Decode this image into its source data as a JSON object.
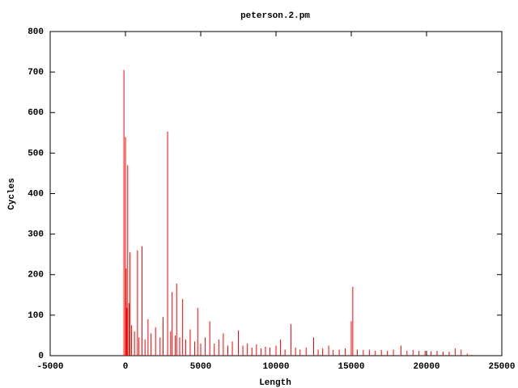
{
  "chart_data": {
    "type": "impulse",
    "title": "peterson.2.pm",
    "x_label": "Length",
    "y_label": "Cycles",
    "color": "#ff0000",
    "x": [
      -100,
      0,
      50,
      100,
      150,
      250,
      300,
      400,
      600,
      800,
      900,
      1100,
      1300,
      1500,
      1700,
      2000,
      2300,
      2500,
      2800,
      3000,
      3100,
      3300,
      3400,
      3600,
      3800,
      4000,
      4300,
      4600,
      4800,
      5000,
      5300,
      5600,
      5900,
      6200,
      6500,
      6800,
      7100,
      7500,
      7800,
      8100,
      8400,
      8700,
      9000,
      9300,
      9600,
      10000,
      10300,
      10600,
      11000,
      11300,
      11600,
      12000,
      12500,
      12800,
      13100,
      13500,
      13800,
      14200,
      14600,
      15000,
      15100,
      15400,
      15800,
      16200,
      16600,
      17000,
      17400,
      17800,
      18300,
      18700,
      19100,
      19500,
      19900,
      20300,
      20700,
      21100,
      21500,
      21900,
      22300,
      22700,
      23000
    ],
    "values": [
      705,
      540,
      215,
      118,
      470,
      130,
      255,
      75,
      60,
      260,
      45,
      270,
      40,
      90,
      55,
      70,
      45,
      95,
      553,
      60,
      157,
      50,
      178,
      45,
      140,
      40,
      65,
      35,
      118,
      30,
      45,
      85,
      30,
      40,
      55,
      25,
      35,
      62,
      25,
      30,
      20,
      28,
      18,
      22,
      20,
      25,
      40,
      15,
      78,
      20,
      15,
      20,
      45,
      15,
      18,
      25,
      14,
      15,
      18,
      85,
      170,
      15,
      14,
      15,
      12,
      14,
      12,
      15,
      25,
      12,
      14,
      12,
      12,
      11,
      12,
      10,
      10,
      18,
      15,
      5,
      2
    ],
    "xlim": [
      -5000,
      25000
    ],
    "xticks": [
      -5000,
      0,
      5000,
      10000,
      15000,
      20000,
      25000
    ],
    "ylim": [
      0,
      800
    ],
    "yticks": [
      0,
      100,
      200,
      300,
      400,
      500,
      600,
      700,
      800
    ]
  }
}
